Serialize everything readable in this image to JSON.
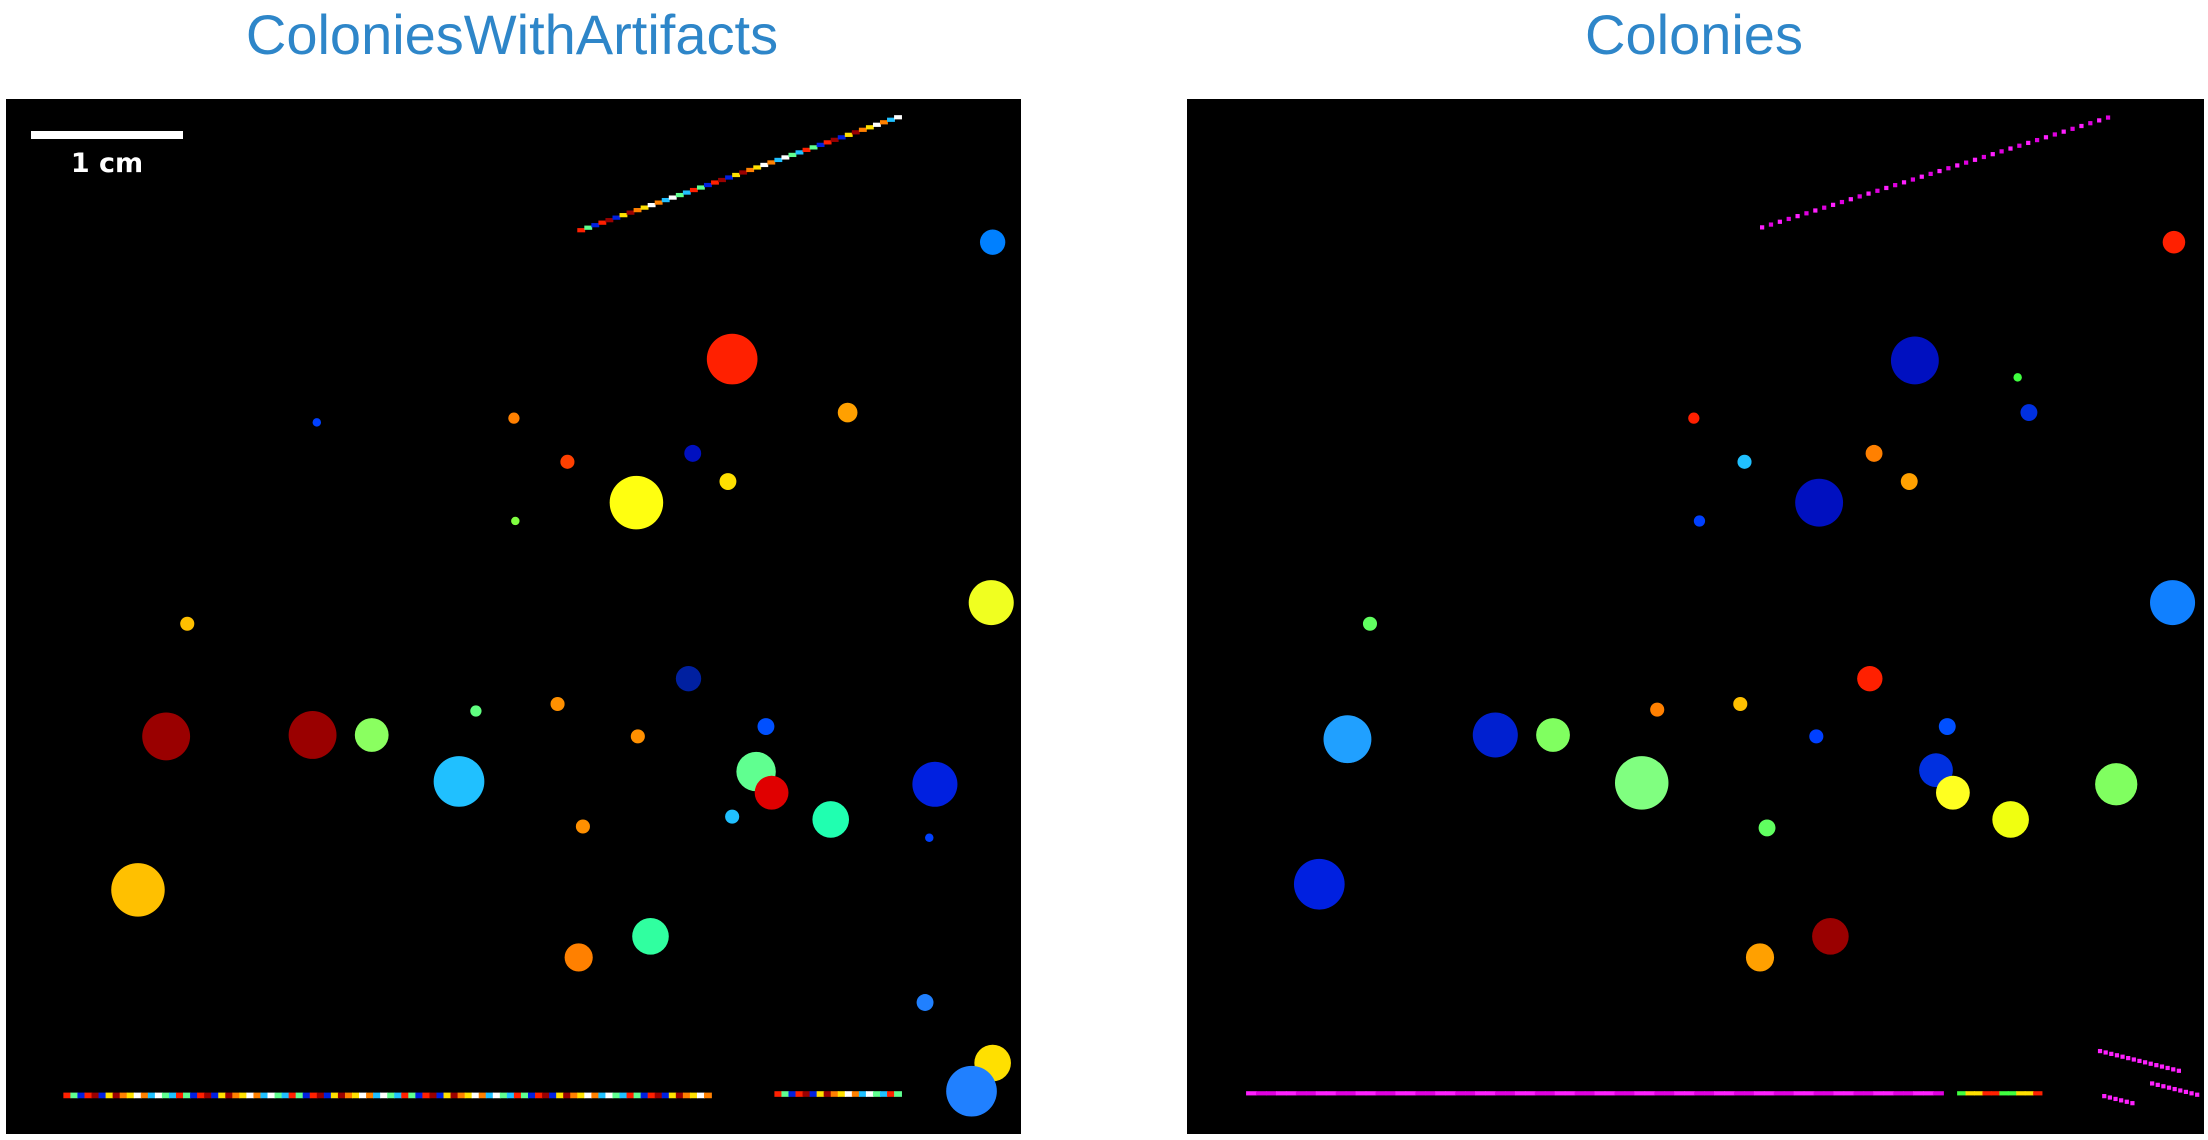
{
  "panels": [
    {
      "title": "ColoniesWithArtifacts",
      "scale_bar_label": "1 cm"
    },
    {
      "title": "Colonies"
    }
  ]
}
